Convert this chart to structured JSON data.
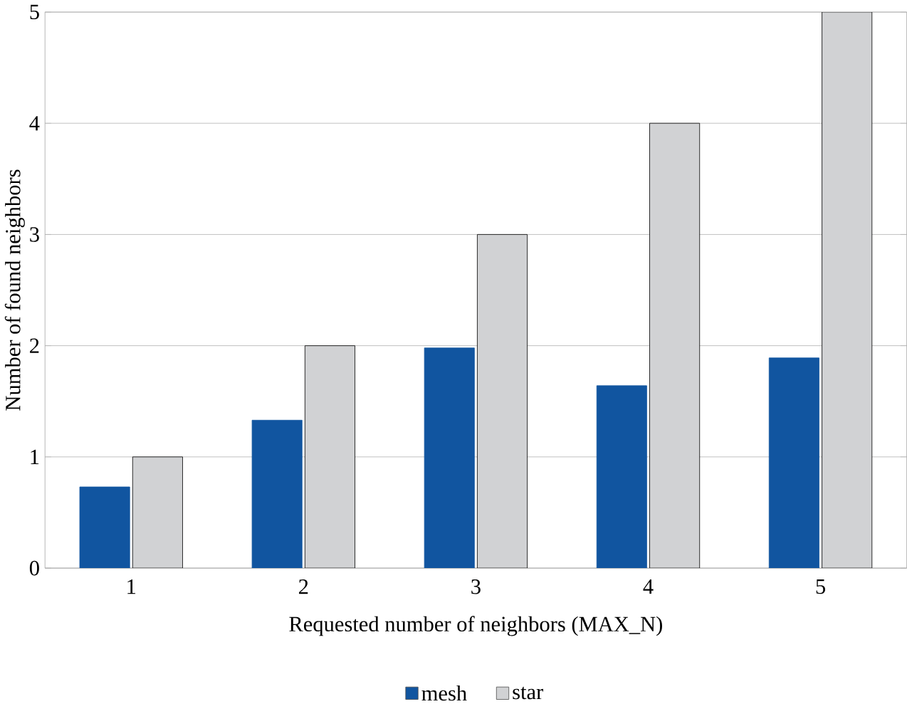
{
  "chart_data": {
    "type": "bar",
    "xlabel": "Requested number of neighbors (MAX_N)",
    "ylabel": "Number of found neighbors",
    "categories": [
      "1",
      "2",
      "3",
      "4",
      "5"
    ],
    "series": [
      {
        "name": "mesh",
        "color": "#1155a0",
        "values": [
          0.73,
          1.33,
          1.98,
          1.64,
          1.89
        ]
      },
      {
        "name": "star",
        "color": "#d1d2d4",
        "values": [
          1,
          2,
          3,
          4,
          5
        ]
      }
    ],
    "ylim": [
      0,
      5
    ],
    "yticks": [
      0,
      1,
      2,
      3,
      4,
      5
    ],
    "grid": "y",
    "legend": "bottom"
  }
}
